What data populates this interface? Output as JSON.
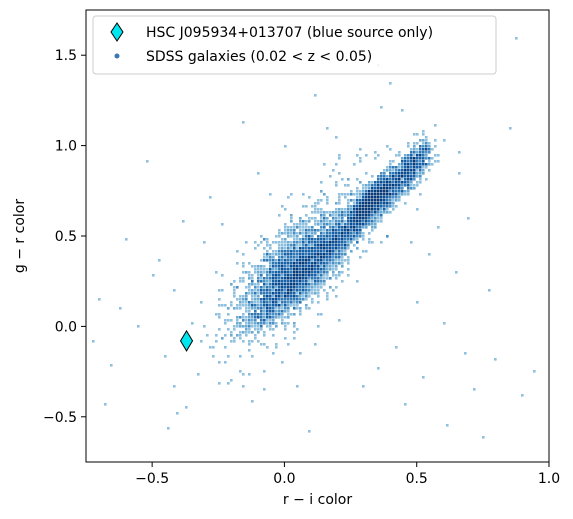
{
  "chart_data": {
    "type": "scatter",
    "title": "",
    "xlabel": "r − i color",
    "ylabel": "g − r color",
    "xlim": [
      -0.75,
      1.0
    ],
    "ylim": [
      -0.75,
      1.75
    ],
    "x_ticks": [
      -0.5,
      0.0,
      0.5,
      1.0
    ],
    "x_tick_labels": [
      "−0.5",
      "0.0",
      "0.5",
      "1.0"
    ],
    "y_ticks": [
      -0.5,
      0.0,
      0.5,
      1.0,
      1.5
    ],
    "y_tick_labels": [
      "−0.5",
      "0.0",
      "0.5",
      "1.0",
      "1.5"
    ],
    "grid": false,
    "legend_position": "top",
    "series": [
      {
        "name": "HSC J095934+013707 (blue source only)",
        "marker": "diamond",
        "color": "#00e5ee",
        "edge_color": "#000000",
        "x": [
          -0.37
        ],
        "y": [
          -0.08
        ]
      },
      {
        "name": "SDSS galaxies (0.02 < z < 0.05)",
        "marker": "dot",
        "color": "#3a78b5",
        "distribution": {
          "ridge": [
            [
              -0.05,
              0.25
            ],
            [
              0.1,
              0.45
            ],
            [
              0.25,
              0.65
            ],
            [
              0.4,
              0.88
            ],
            [
              0.5,
              1.05
            ]
          ],
          "peak": [
            0.33,
            0.7
          ],
          "secondary_peak": [
            0.03,
            0.3
          ],
          "x_range": [
            -0.25,
            0.52
          ],
          "y_range": [
            -0.05,
            1.15
          ]
        },
        "outliers": [
          [
            -0.72,
            -0.08
          ],
          [
            -0.7,
            0.15
          ],
          [
            -0.68,
            -0.43
          ],
          [
            -0.65,
            -0.22
          ],
          [
            -0.6,
            0.48
          ],
          [
            -0.55,
            0.0
          ],
          [
            -0.52,
            0.92
          ],
          [
            -0.5,
            0.28
          ],
          [
            -0.47,
            0.37
          ],
          [
            -0.45,
            -0.17
          ],
          [
            -0.44,
            -0.56
          ],
          [
            -0.42,
            0.2
          ],
          [
            -0.41,
            -0.33
          ],
          [
            -0.4,
            -0.48
          ],
          [
            -0.38,
            0.58
          ],
          [
            -0.35,
            0.02
          ],
          [
            -0.32,
            -0.27
          ],
          [
            -0.3,
            0.47
          ],
          [
            -0.28,
            0.72
          ],
          [
            -0.25,
            0.2
          ],
          [
            -0.27,
            -0.12
          ],
          [
            -0.2,
            -0.3
          ],
          [
            -0.18,
            0.34
          ],
          [
            -0.15,
            1.13
          ],
          [
            -0.1,
            0.85
          ],
          [
            -0.05,
            0.73
          ],
          [
            -0.08,
            -0.25
          ],
          [
            0.0,
            1.0
          ],
          [
            0.05,
            -0.33
          ],
          [
            0.1,
            -0.58
          ],
          [
            0.12,
            1.27
          ],
          [
            0.15,
            0.9
          ],
          [
            0.3,
            -0.33
          ],
          [
            0.35,
            -0.24
          ],
          [
            0.4,
            1.35
          ],
          [
            0.42,
            -0.12
          ],
          [
            0.46,
            -0.44
          ],
          [
            0.5,
            0.13
          ],
          [
            0.52,
            -0.28
          ],
          [
            0.55,
            0.4
          ],
          [
            0.6,
            0.02
          ],
          [
            0.62,
            -0.55
          ],
          [
            0.65,
            0.3
          ],
          [
            0.68,
            -0.15
          ],
          [
            0.7,
            0.6
          ],
          [
            0.72,
            -0.35
          ],
          [
            0.75,
            -0.62
          ],
          [
            0.78,
            0.2
          ],
          [
            0.8,
            -0.18
          ],
          [
            0.85,
            1.1
          ],
          [
            0.88,
            1.59
          ],
          [
            0.9,
            -0.38
          ],
          [
            0.95,
            -0.25
          ],
          [
            0.36,
            1.45
          ],
          [
            -0.62,
            0.1
          ],
          [
            0.58,
            0.55
          ],
          [
            0.45,
            1.2
          ],
          [
            -0.12,
            -0.42
          ],
          [
            0.2,
            1.05
          ],
          [
            0.66,
            0.85
          ]
        ]
      }
    ]
  }
}
